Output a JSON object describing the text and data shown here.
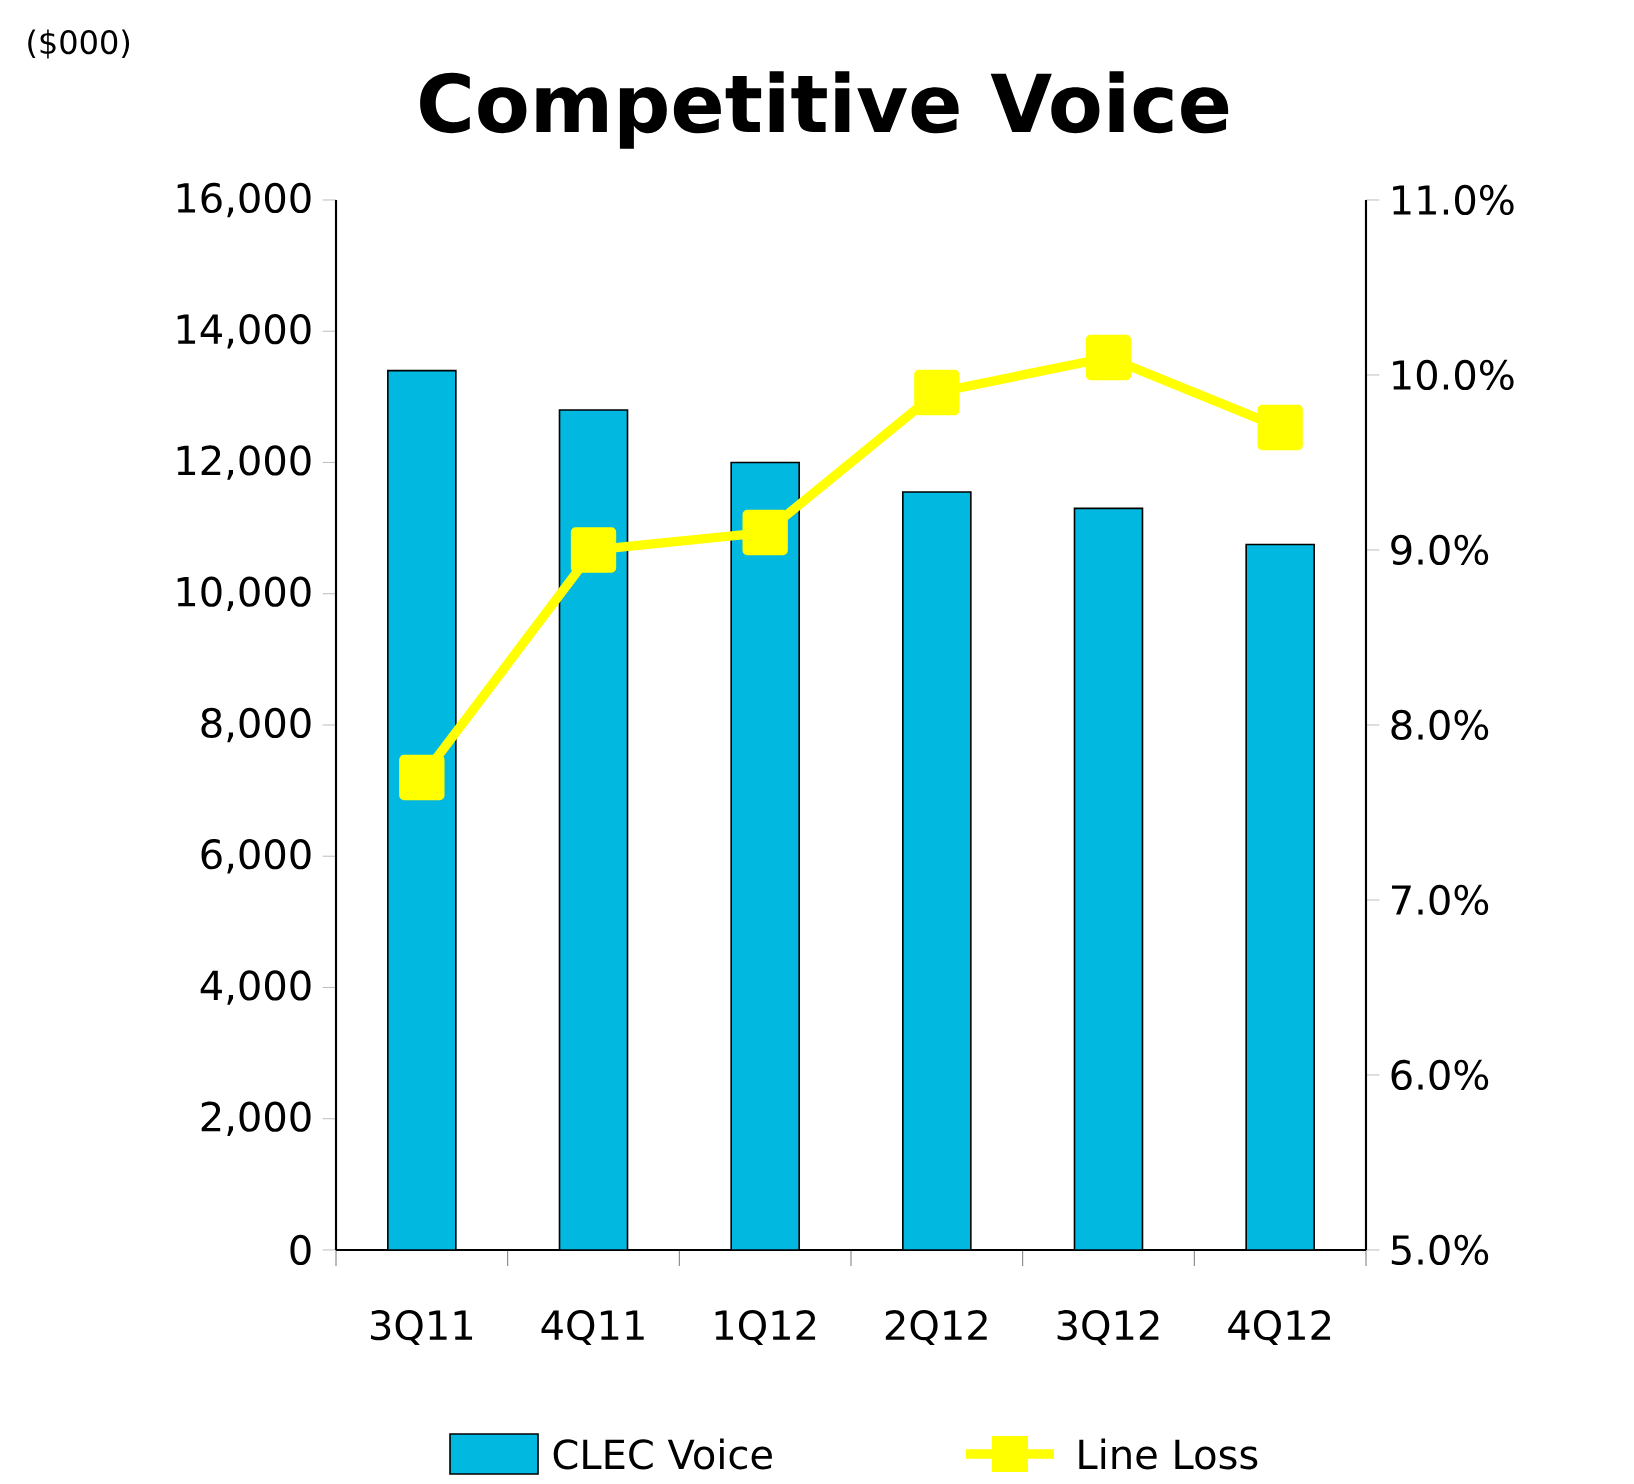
{
  "chart_data": {
    "type": "bar",
    "title": "Competitive Voice",
    "annotations": [
      "($000)"
    ],
    "categories": [
      "3Q11",
      "4Q11",
      "1Q12",
      "2Q12",
      "3Q12",
      "4Q12"
    ],
    "series": [
      {
        "name": "CLEC Voice",
        "color": "#00b8e0",
        "values": [
          13400,
          12800,
          12000,
          11550,
          11300,
          10750
        ]
      },
      {
        "name": "Line Loss",
        "type": "line",
        "axis": "y2",
        "color": "#ffff00",
        "values": [
          7.7,
          9.0,
          9.1,
          9.9,
          10.1,
          9.7
        ]
      }
    ],
    "ylim": [
      0,
      16000
    ],
    "yticks": [
      {
        "value": 0,
        "label": "0"
      },
      {
        "value": 2000,
        "label": "2,000"
      },
      {
        "value": 4000,
        "label": "4,000"
      },
      {
        "value": 6000,
        "label": "6,000"
      },
      {
        "value": 8000,
        "label": "8,000"
      },
      {
        "value": 10000,
        "label": "10,000"
      },
      {
        "value": 12000,
        "label": "12,000"
      },
      {
        "value": 14000,
        "label": "14,000"
      },
      {
        "value": 16000,
        "label": "16,000"
      }
    ],
    "y2lim": [
      5,
      11
    ],
    "y2ticks": [
      {
        "value": 5,
        "label": "5.0%"
      },
      {
        "value": 6,
        "label": "6.0%"
      },
      {
        "value": 7,
        "label": "7.0%"
      },
      {
        "value": 8,
        "label": "8.0%"
      },
      {
        "value": 9,
        "label": "9.0%"
      },
      {
        "value": 10,
        "label": "10.0%"
      },
      {
        "value": 11,
        "label": "11.0%"
      }
    ],
    "marker": "square",
    "legend": "bottom"
  }
}
